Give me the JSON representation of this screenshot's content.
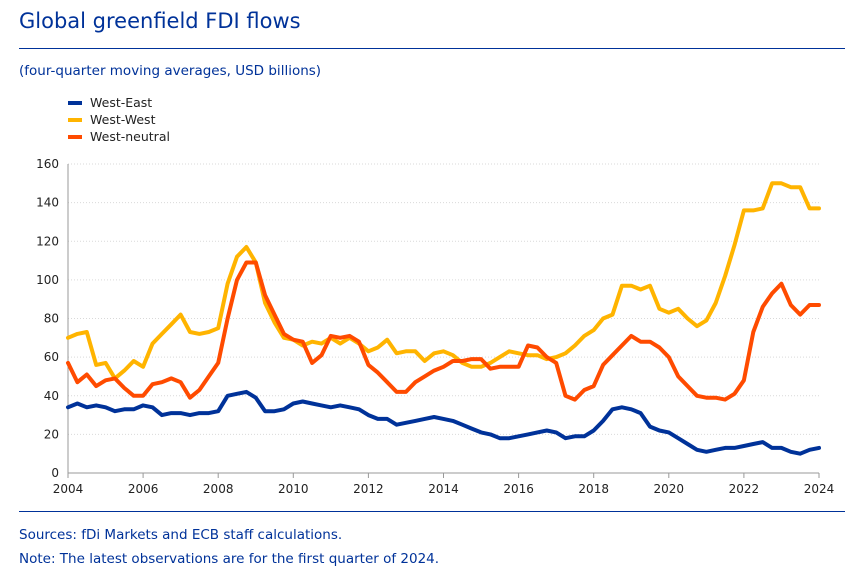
{
  "title": "Global greenfield FDI flows",
  "subtitle": "(four-quarter moving averages, USD billions)",
  "source": "Sources: fDi Markets and ECB staff calculations.",
  "note": "Note: The latest observations are for the first quarter of 2024.",
  "chart_data": {
    "type": "line",
    "title": "Global greenfield FDI flows",
    "xlabel": "",
    "ylabel": "USD billions",
    "xlim": [
      2004,
      2024
    ],
    "ylim": [
      0,
      160
    ],
    "x_ticks": [
      2004,
      2006,
      2008,
      2010,
      2012,
      2014,
      2016,
      2018,
      2020,
      2022,
      2024
    ],
    "y_ticks": [
      0,
      20,
      40,
      60,
      80,
      100,
      120,
      140,
      160
    ],
    "x_tick_labels": [
      "2004",
      "2006",
      "2008",
      "2010",
      "2012",
      "2014",
      "2016",
      "2018",
      "2020",
      "2022",
      "2024"
    ],
    "y_tick_labels": [
      "0",
      "20",
      "40",
      "60",
      "80",
      "100",
      "120",
      "140",
      "160"
    ],
    "grid": "horizontal",
    "legend_position": "top-left",
    "x": [
      2004.0,
      2004.25,
      2004.5,
      2004.75,
      2005.0,
      2005.25,
      2005.5,
      2005.75,
      2006.0,
      2006.25,
      2006.5,
      2006.75,
      2007.0,
      2007.25,
      2007.5,
      2007.75,
      2008.0,
      2008.25,
      2008.5,
      2008.75,
      2009.0,
      2009.25,
      2009.5,
      2009.75,
      2010.0,
      2010.25,
      2010.5,
      2010.75,
      2011.0,
      2011.25,
      2011.5,
      2011.75,
      2012.0,
      2012.25,
      2012.5,
      2012.75,
      2013.0,
      2013.25,
      2013.5,
      2013.75,
      2014.0,
      2014.25,
      2014.5,
      2014.75,
      2015.0,
      2015.25,
      2015.5,
      2015.75,
      2016.0,
      2016.25,
      2016.5,
      2016.75,
      2017.0,
      2017.25,
      2017.5,
      2017.75,
      2018.0,
      2018.25,
      2018.5,
      2018.75,
      2019.0,
      2019.25,
      2019.5,
      2019.75,
      2020.0,
      2020.25,
      2020.5,
      2020.75,
      2021.0,
      2021.25,
      2021.5,
      2021.75,
      2022.0,
      2022.25,
      2022.5,
      2022.75,
      2023.0,
      2023.25,
      2023.5,
      2023.75,
      2024.0
    ],
    "series": [
      {
        "name": "West-East",
        "color": "#003299",
        "values": [
          34,
          36,
          34,
          35,
          34,
          32,
          33,
          33,
          35,
          34,
          30,
          31,
          31,
          30,
          31,
          31,
          32,
          40,
          41,
          42,
          39,
          32,
          32,
          33,
          36,
          37,
          36,
          35,
          34,
          35,
          34,
          33,
          30,
          28,
          28,
          25,
          26,
          27,
          28,
          29,
          28,
          27,
          25,
          23,
          21,
          20,
          18,
          18,
          19,
          20,
          21,
          22,
          21,
          18,
          19,
          19,
          22,
          27,
          33,
          34,
          33,
          31,
          24,
          22,
          21,
          18,
          15,
          12,
          11,
          12,
          13,
          13,
          14,
          15,
          16,
          13,
          13,
          11,
          10,
          12,
          13
        ]
      },
      {
        "name": "West-West",
        "color": "#FFB400",
        "values": [
          70,
          72,
          73,
          56,
          57,
          49,
          53,
          58,
          55,
          67,
          72,
          77,
          82,
          73,
          72,
          73,
          75,
          98,
          112,
          117,
          109,
          88,
          78,
          70,
          69,
          66,
          68,
          67,
          70,
          67,
          70,
          67,
          63,
          65,
          69,
          62,
          63,
          63,
          58,
          62,
          63,
          61,
          57,
          55,
          55,
          57,
          60,
          63,
          62,
          61,
          61,
          59,
          60,
          62,
          66,
          71,
          74,
          80,
          82,
          97,
          97,
          95,
          97,
          85,
          83,
          85,
          80,
          76,
          79,
          88,
          102,
          118,
          136,
          136,
          137,
          150,
          150,
          148,
          148,
          137,
          137
        ]
      },
      {
        "name": "West-neutral",
        "color": "#FF4B00",
        "values": [
          57,
          47,
          51,
          45,
          48,
          49,
          44,
          40,
          40,
          46,
          47,
          49,
          47,
          39,
          43,
          50,
          57,
          80,
          100,
          109,
          109,
          92,
          82,
          72,
          69,
          68,
          57,
          61,
          71,
          70,
          71,
          68,
          56,
          52,
          47,
          42,
          42,
          47,
          50,
          53,
          55,
          58,
          58,
          59,
          59,
          54,
          55,
          55,
          55,
          66,
          65,
          60,
          57,
          40,
          38,
          43,
          45,
          56,
          61,
          66,
          71,
          68,
          68,
          65,
          60,
          50,
          45,
          40,
          39,
          39,
          38,
          41,
          48,
          73,
          86,
          93,
          98,
          87,
          82,
          87,
          87
        ]
      }
    ]
  }
}
